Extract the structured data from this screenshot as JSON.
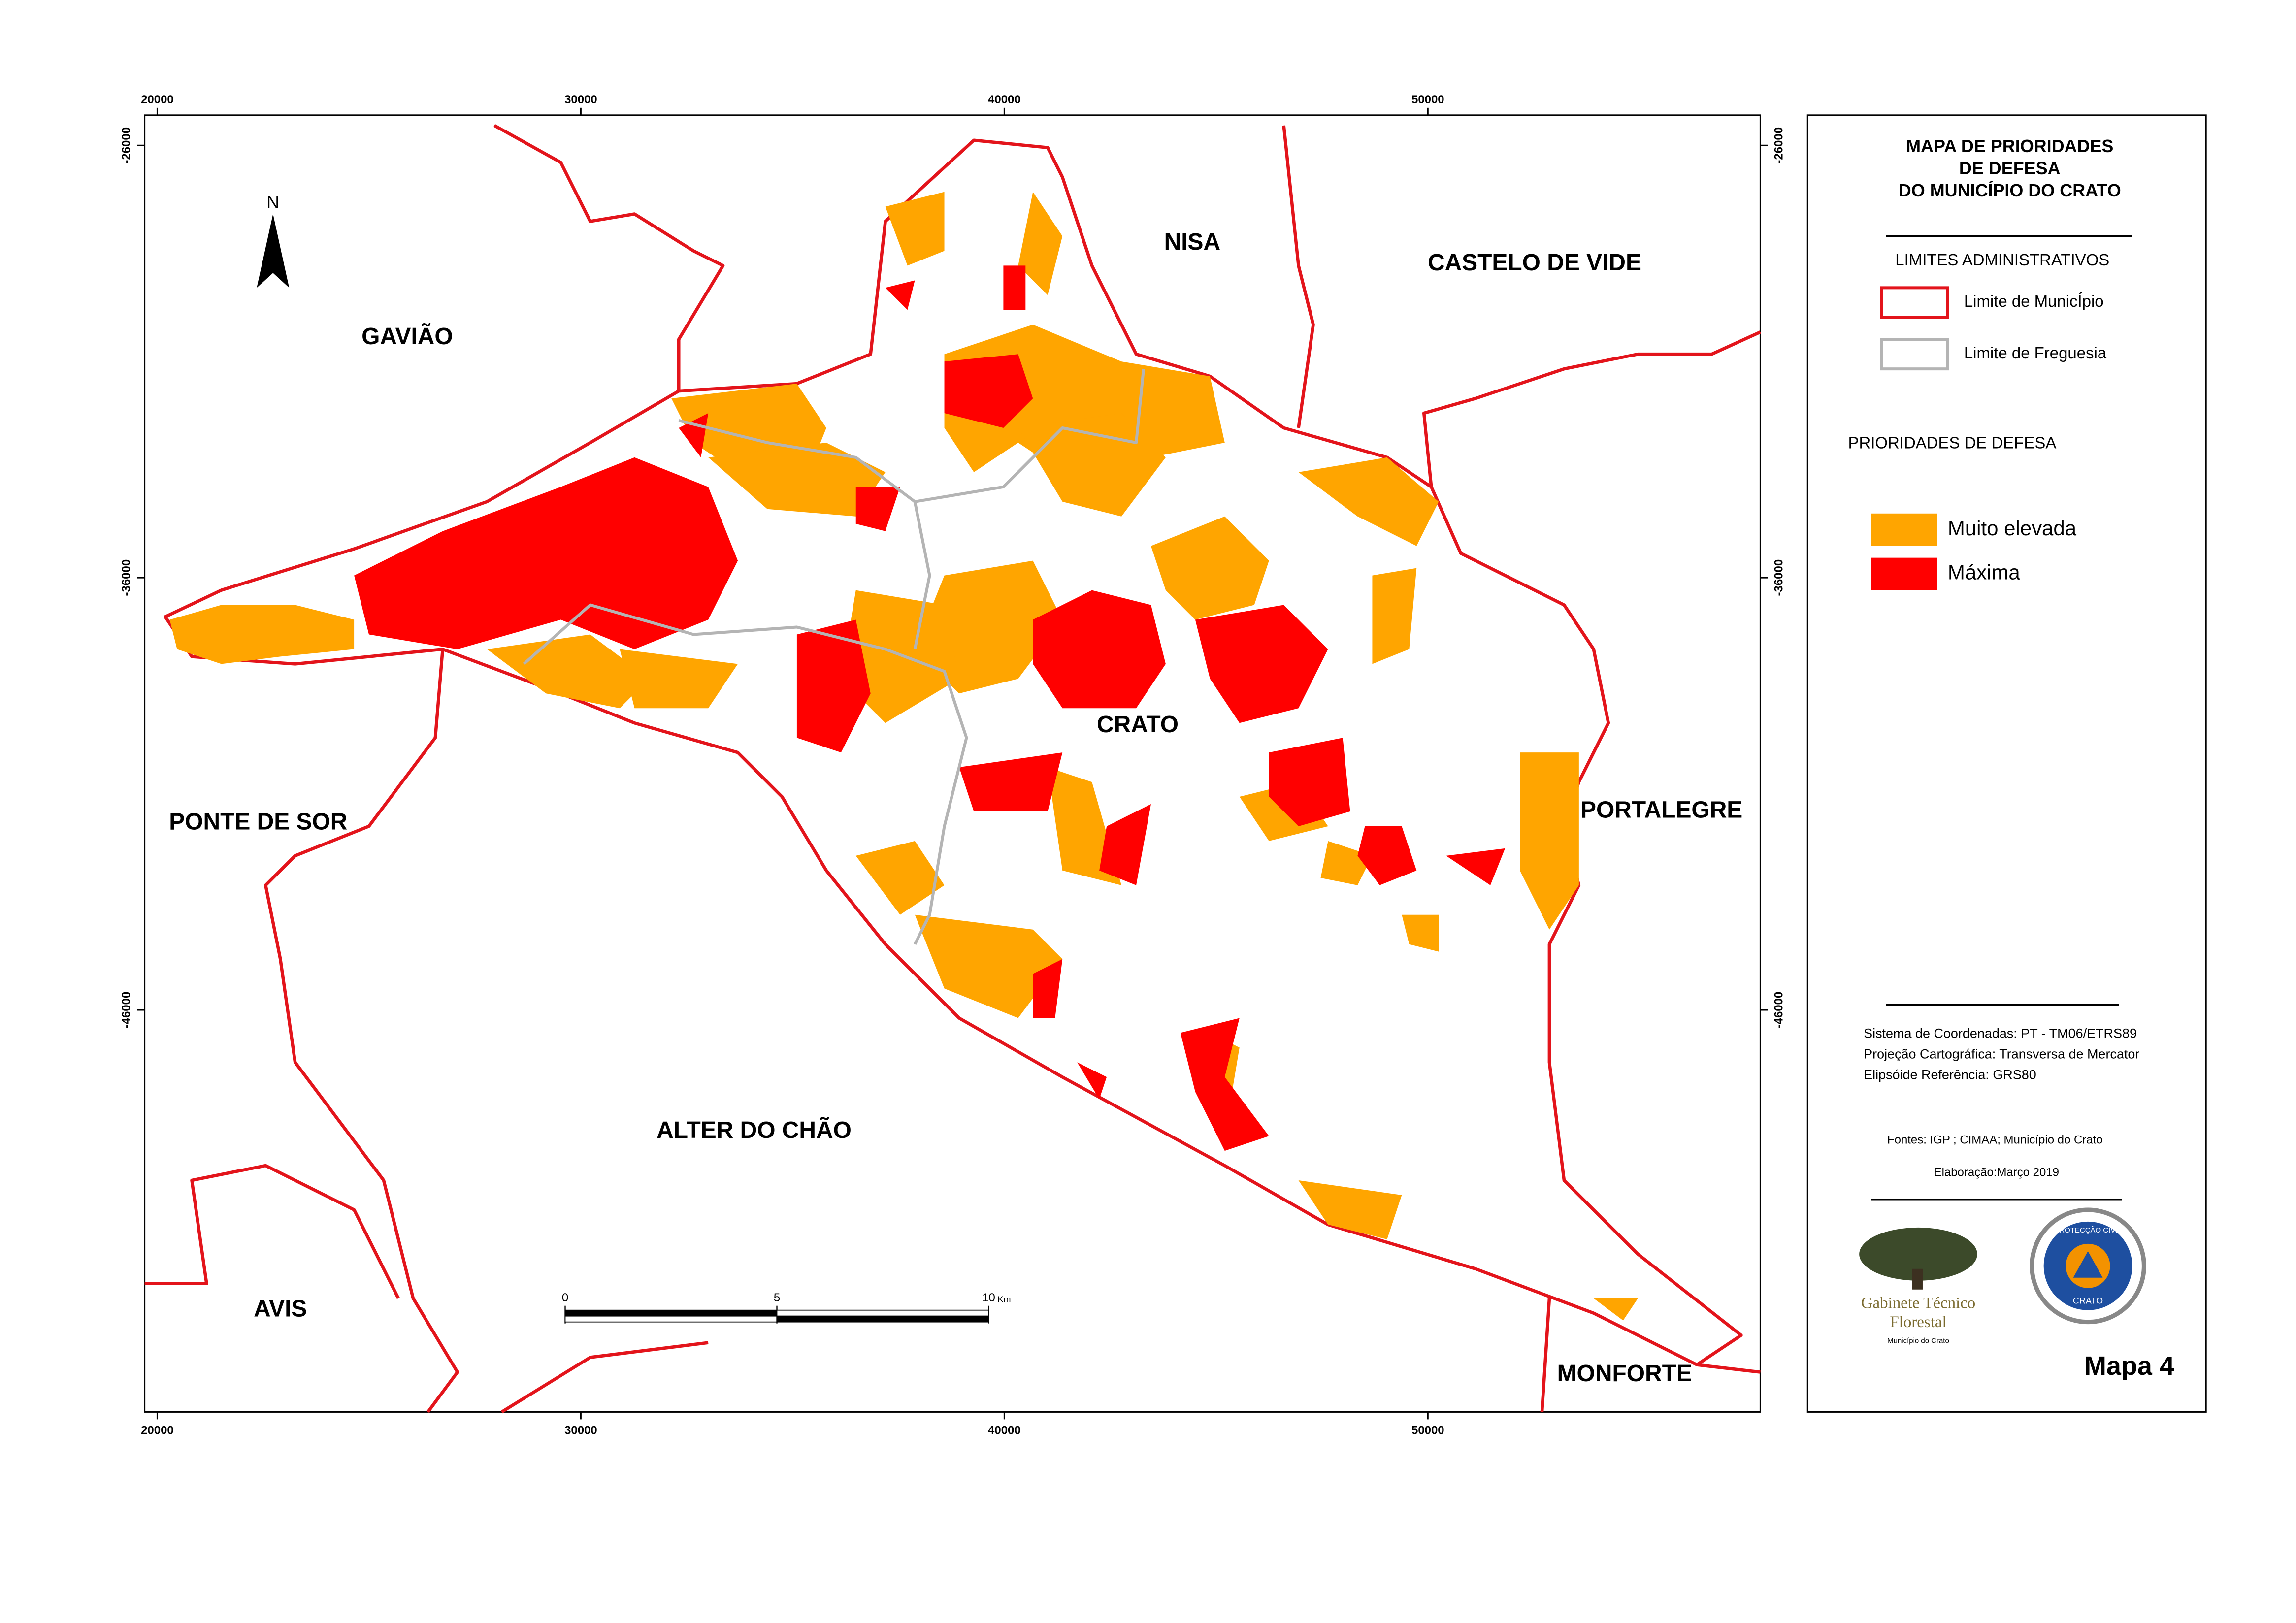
{
  "header": {
    "title": [
      "MAPA DE PRIORIDADES",
      "DE DEFESA",
      "DO MUNICÍPIO DO CRATO"
    ]
  },
  "map": {
    "xlim": [
      19700,
      57850
    ],
    "ylim": [
      -55300,
      -25300
    ],
    "xticks": [
      20000,
      30000,
      40000,
      50000
    ],
    "yticks": [
      -26000,
      -36000,
      -46000
    ],
    "north": "N",
    "regions": [
      "NISA",
      "CASTELO DE VIDE",
      "GAVIÃO",
      "CRATO",
      "PONTE DE SOR",
      "PORTALEGRE",
      "ALTER DO CHÃO",
      "AVIS",
      "MONFORTE"
    ]
  },
  "scale_bar": {
    "ticks": [
      0,
      5,
      10
    ],
    "unit": "Km"
  },
  "legend": {
    "boundaries_title": "LIMITES ADMINISTRATIVOS",
    "boundaries": [
      {
        "label": "Limite de MunicÍpio",
        "color": "#e3141b"
      },
      {
        "label": "Limite de Freguesia",
        "color": "#b4b4b4"
      }
    ],
    "priorities_title": "PRIORIDADES DE DEFESA",
    "priorities": [
      {
        "label": "Muito elevada",
        "color": "#ffa500"
      },
      {
        "label": "Máxima",
        "color": "#ff0000"
      }
    ]
  },
  "info": {
    "lines": [
      "Sistema de Coordenadas: PT - TM06/ETRS89",
      "Projeção Cartográfica: Transversa de Mercator",
      "Elipsóide Referência: GRS80"
    ],
    "sources": "Fontes: IGP ; CIMAA; Município do Crato",
    "date": "Elaboração:Março 2019"
  },
  "logos": {
    "gtf": [
      "Gabinete Técnico",
      "Florestal",
      "Município do Crato"
    ],
    "pc": [
      "PROTECÇÃO CIVIL",
      "CRATO"
    ]
  },
  "map_number": "Mapa 4"
}
